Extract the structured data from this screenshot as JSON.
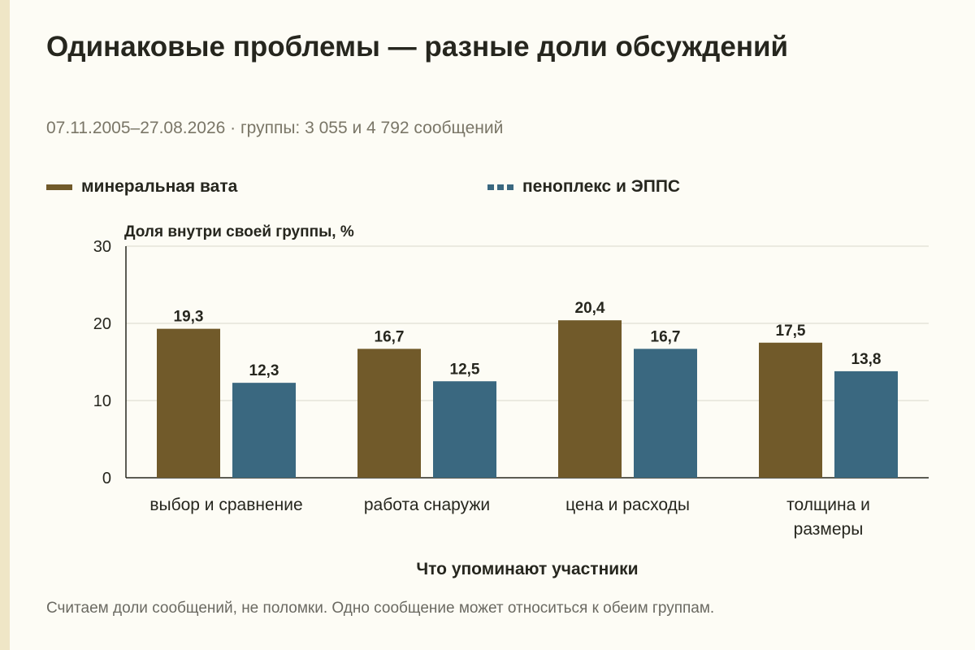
{
  "title": "Одинаковые проблемы — разные доли обсуждений",
  "subtitle": "07.11.2005–27.08.2026 · группы: 3 055 и 4 792 сообщений",
  "footnote": "Считаем доли сообщений, не поломки. Одно сообщение может относиться к обеим группам.",
  "colors": {
    "series_1": "#715a2a",
    "series_2": "#3a6880"
  },
  "chart_data": {
    "type": "bar",
    "categories": [
      [
        "выбор и сравнение"
      ],
      [
        "работа снаружи"
      ],
      [
        "цена и расходы"
      ],
      [
        "толщина и",
        "размеры"
      ]
    ],
    "series": [
      {
        "name": "минеральная вата",
        "values": [
          19.3,
          16.7,
          20.4,
          17.5
        ],
        "value_labels": [
          "19,3",
          "16,7",
          "20,4",
          "17,5"
        ]
      },
      {
        "name": "пеноплекс и ЭППС",
        "values": [
          12.3,
          12.5,
          16.7,
          13.8
        ],
        "value_labels": [
          "12,3",
          "12,5",
          "16,7",
          "13,8"
        ]
      }
    ],
    "ylabel": "Доля внутри своей группы, %",
    "xlabel": "Что упоминают участники",
    "ylim": [
      0,
      30
    ],
    "yticks": [
      0,
      10,
      20,
      30
    ],
    "grid": true,
    "legend_position": "top-left"
  }
}
